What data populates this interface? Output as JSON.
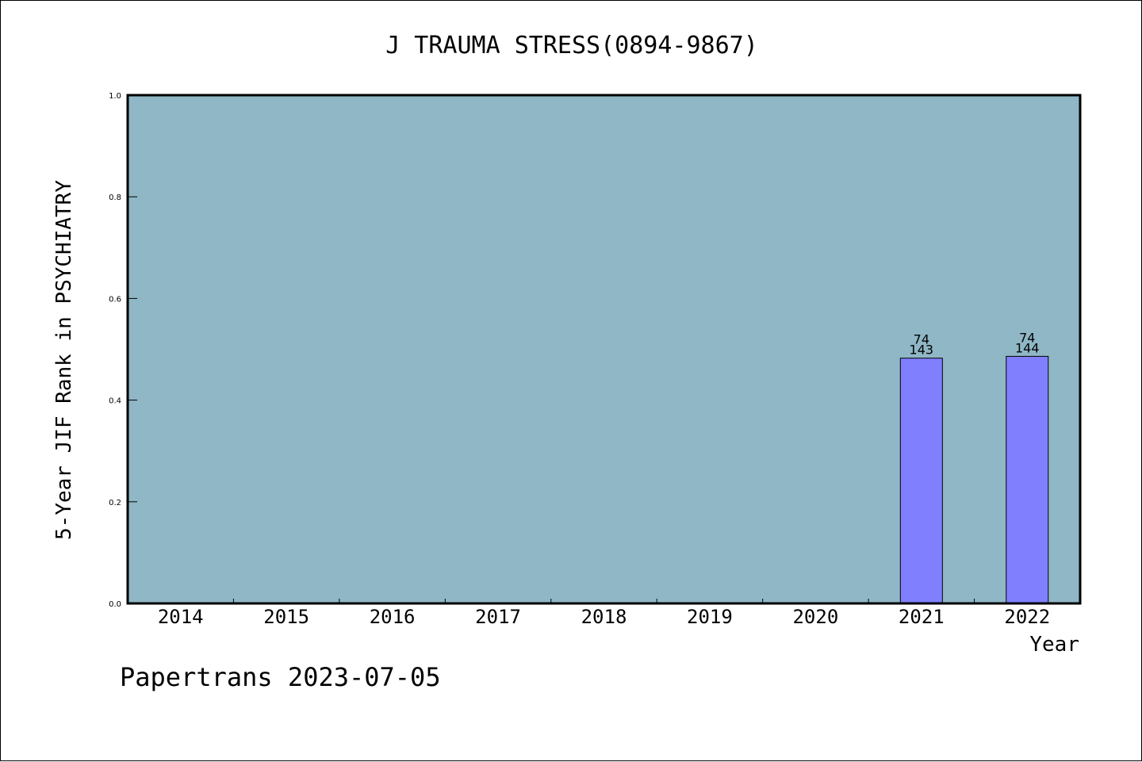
{
  "chart_data": {
    "type": "bar",
    "title": "J TRAUMA STRESS(0894-9867)",
    "xlabel": "Year",
    "ylabel": "5-Year JIF Rank in PSYCHIATRY",
    "categories": [
      "2014",
      "2015",
      "2016",
      "2017",
      "2018",
      "2019",
      "2020",
      "2021",
      "2022"
    ],
    "values": [
      null,
      null,
      null,
      null,
      null,
      null,
      null,
      0.4825,
      0.4861
    ],
    "bar_labels": [
      null,
      null,
      null,
      null,
      null,
      null,
      null,
      {
        "rank": "74",
        "total": "143"
      },
      {
        "rank": "74",
        "total": "144"
      }
    ],
    "ylim": [
      0,
      1.0
    ],
    "yticks": [
      "0.0",
      "0.2",
      "0.4",
      "0.6",
      "0.8",
      "1.0"
    ],
    "grid": false,
    "colors": {
      "plot_background": "#8fb7c5",
      "bar_fill": "#8080ff",
      "bar_edge": "#000000"
    }
  },
  "footer": "Papertrans 2023-07-05"
}
